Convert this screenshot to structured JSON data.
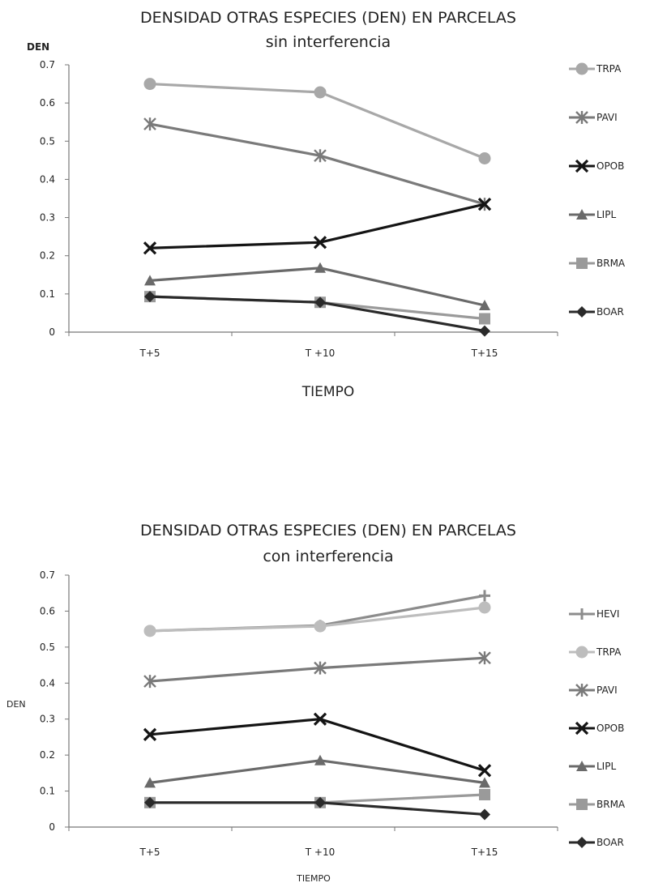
{
  "chart_data": [
    {
      "type": "line",
      "title": "DENSIDAD OTRAS ESPECIES (DEN) EN PARCELAS",
      "subtitle": "sin interferencia",
      "xlabel": "TIEMPO",
      "ylabel": "DEN",
      "categories": [
        "T+5",
        "T +10",
        "T+15"
      ],
      "ylim": [
        0,
        0.7
      ],
      "yticks": [
        "0",
        "0.1",
        "0.2",
        "0.3",
        "0.4",
        "0.5",
        "0.6",
        "0.7"
      ],
      "legend_position": "right",
      "series": [
        {
          "name": "TRPA",
          "values": [
            0.65,
            0.628,
            0.455
          ],
          "color": "#a8a8a8",
          "marker": "circle"
        },
        {
          "name": "PAVI",
          "values": [
            0.545,
            0.462,
            0.335
          ],
          "color": "#7a7a7a",
          "marker": "star"
        },
        {
          "name": "OPOB",
          "values": [
            0.22,
            0.235,
            0.335
          ],
          "color": "#141414",
          "marker": "x"
        },
        {
          "name": "LIPL",
          "values": [
            0.135,
            0.168,
            0.07
          ],
          "color": "#6a6a6a",
          "marker": "triangle"
        },
        {
          "name": "BRMA",
          "values": [
            0.093,
            0.078,
            0.035
          ],
          "color": "#9a9a9a",
          "marker": "square"
        },
        {
          "name": "BOAR",
          "values": [
            0.093,
            0.078,
            0.003
          ],
          "color": "#2a2a2a",
          "marker": "diamond"
        }
      ]
    },
    {
      "type": "line",
      "title": "DENSIDAD OTRAS ESPECIES (DEN) EN PARCELAS",
      "subtitle": "con interferencia",
      "xlabel": "TIEMPO",
      "ylabel": "DEN",
      "categories": [
        "T+5",
        "T +10",
        "T+15"
      ],
      "ylim": [
        0,
        0.7
      ],
      "yticks": [
        "0",
        "0.1",
        "0.2",
        "0.3",
        "0.4",
        "0.5",
        "0.6",
        "0.7"
      ],
      "legend_position": "right",
      "series": [
        {
          "name": "HEVI",
          "values": [
            0.545,
            0.56,
            0.643
          ],
          "color": "#8c8c8c",
          "marker": "plus"
        },
        {
          "name": "TRPA",
          "values": [
            0.545,
            0.558,
            0.61
          ],
          "color": "#bdbdbd",
          "marker": "circle"
        },
        {
          "name": "PAVI",
          "values": [
            0.405,
            0.442,
            0.47
          ],
          "color": "#7a7a7a",
          "marker": "star"
        },
        {
          "name": "OPOB",
          "values": [
            0.257,
            0.3,
            0.157
          ],
          "color": "#141414",
          "marker": "x"
        },
        {
          "name": "LIPL",
          "values": [
            0.123,
            0.185,
            0.123
          ],
          "color": "#6a6a6a",
          "marker": "triangle"
        },
        {
          "name": "BRMA",
          "values": [
            0.068,
            0.068,
            0.09
          ],
          "color": "#9a9a9a",
          "marker": "square"
        },
        {
          "name": "BOAR",
          "values": [
            0.068,
            0.068,
            0.035
          ],
          "color": "#2a2a2a",
          "marker": "diamond"
        }
      ]
    }
  ]
}
